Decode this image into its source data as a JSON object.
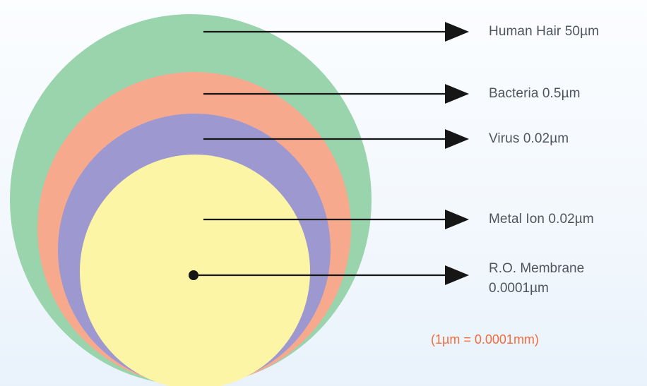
{
  "colors": {
    "hair": "#99d4ad",
    "bacteria": "#f7a98e",
    "virus": "#9e98d0",
    "metal_ion": "#fdf5a6",
    "arrow": "#161616",
    "label_text": "#4f555e",
    "note_text": "#f26d3d"
  },
  "particles": [
    {
      "id": "human-hair",
      "label": "Human Hair 50µm"
    },
    {
      "id": "bacteria",
      "label": "Bacteria 0.5µm"
    },
    {
      "id": "virus",
      "label": "Virus 0.02µm"
    },
    {
      "id": "metal-ion",
      "label": "Metal Ion 0.02µm"
    },
    {
      "id": "ro-membrane",
      "label_line1": "R.O. Membrane",
      "label_line2": "0.0001µm"
    }
  ],
  "note": "(1µm = 0.0001mm)"
}
